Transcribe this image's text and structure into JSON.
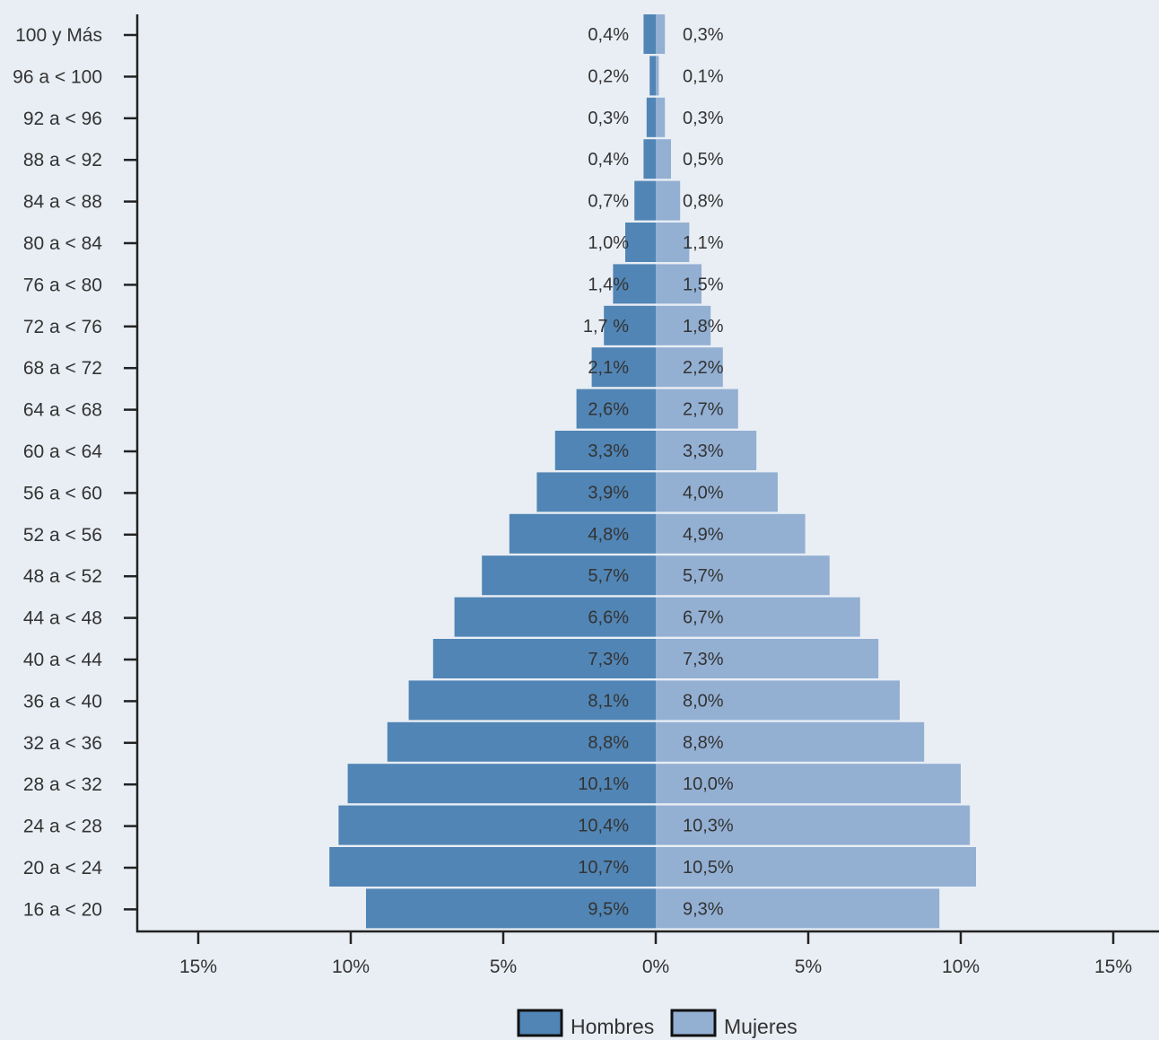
{
  "chart_data": {
    "type": "bar",
    "orientation": "horizontal-population-pyramid",
    "categories": [
      "100 y Más",
      "96 a < 100",
      "92 a < 96",
      "88 a < 92",
      "84 a < 88",
      "80 a < 84",
      "76 a < 80",
      "72 a < 76",
      "68 a < 72",
      "64 a < 68",
      "60 a < 64",
      "56 a < 60",
      "52 a < 56",
      "48 a < 52",
      "44 a < 48",
      "40 a < 44",
      "36 a < 40",
      "32 a < 36",
      "28 a < 32",
      "24 a < 28",
      "20 a < 24",
      "16 a < 20"
    ],
    "series": [
      {
        "name": "Hombres",
        "side": "left",
        "color": "#5185b5",
        "values": [
          0.4,
          0.2,
          0.3,
          0.4,
          0.7,
          1.0,
          1.4,
          1.7,
          2.1,
          2.6,
          3.3,
          3.9,
          4.8,
          5.7,
          6.6,
          7.3,
          8.1,
          8.8,
          10.1,
          10.4,
          10.7,
          9.5
        ],
        "labels": [
          "0,4%",
          "0,2%",
          "0,3%",
          "0,4%",
          "0,7%",
          "1,0%",
          "1,4%",
          "1,7 %",
          "2,1%",
          "2,6%",
          "3,3%",
          "3,9%",
          "4,8%",
          "5,7%",
          "6,6%",
          "7,3%",
          "8,1%",
          "8,8%",
          "10,1%",
          "10,4%",
          "10,7%",
          "9,5%"
        ]
      },
      {
        "name": "Mujeres",
        "side": "right",
        "color": "#93b0d3",
        "values": [
          0.3,
          0.1,
          0.3,
          0.5,
          0.8,
          1.1,
          1.5,
          1.8,
          2.2,
          2.7,
          3.3,
          4.0,
          4.9,
          5.7,
          6.7,
          7.3,
          8.0,
          8.8,
          10.0,
          10.3,
          10.5,
          9.3
        ],
        "labels": [
          "0,3%",
          "0,1%",
          "0,3%",
          "0,5%",
          "0,8%",
          "1,1%",
          "1,5%",
          "1,8%",
          "2,2%",
          "2,7%",
          "3,3%",
          "4,0%",
          "4,9%",
          "5,7%",
          "6,7%",
          "7,3%",
          "8,0%",
          "8,8%",
          "10,0%",
          "10,3%",
          "10,5%",
          "9,3%"
        ]
      }
    ],
    "x_ticks": [
      -15,
      -10,
      -5,
      0,
      5,
      10,
      15
    ],
    "x_tick_labels": [
      "15%",
      "10%",
      "5%",
      "0%",
      "5%",
      "10%",
      "15%"
    ],
    "xlim": [
      -15,
      15
    ],
    "legend": {
      "position": "bottom-center",
      "items": [
        "Hombres",
        "Mujeres"
      ]
    },
    "grid": false,
    "title": "",
    "xlabel": "",
    "ylabel": ""
  }
}
